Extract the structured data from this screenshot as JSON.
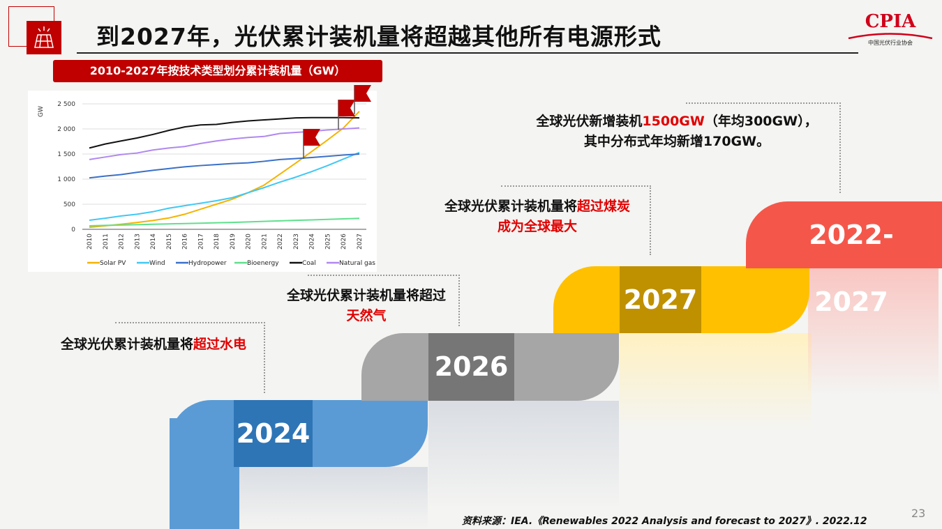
{
  "title": "到2027年，光伏累计装机量将超越其他所有电源形式",
  "logo": {
    "text": "CPIA",
    "subtitle": "中国光伏行业协会"
  },
  "chart_banner": "2010-2027年按技术类型划分累计装机量（GW）",
  "chart_data": {
    "type": "line",
    "ylabel": "GW",
    "ylim": [
      0,
      2500
    ],
    "yticks": [
      "0",
      "500",
      "1 000",
      "1 500",
      "2 000",
      "2 500"
    ],
    "grid": true,
    "legend_position": "bottom",
    "x": [
      "2010",
      "2011",
      "2012",
      "2013",
      "2014",
      "2015",
      "2016",
      "2017",
      "2018",
      "2019",
      "2020",
      "2021",
      "2022",
      "2023",
      "2024",
      "2025",
      "2026",
      "2027"
    ],
    "series": [
      {
        "name": "Solar PV",
        "color": "#f5b300",
        "values": [
          40,
          70,
          100,
          135,
          175,
          225,
          300,
          400,
          500,
          600,
          730,
          880,
          1100,
          1320,
          1550,
          1780,
          2020,
          2350
        ]
      },
      {
        "name": "Wind",
        "color": "#40c8f4",
        "values": [
          180,
          220,
          265,
          300,
          350,
          420,
          470,
          520,
          570,
          630,
          730,
          830,
          940,
          1040,
          1150,
          1270,
          1400,
          1530
        ]
      },
      {
        "name": "Hydropower",
        "color": "#3a70c8",
        "values": [
          1025,
          1060,
          1090,
          1135,
          1175,
          1210,
          1245,
          1270,
          1290,
          1310,
          1325,
          1355,
          1390,
          1410,
          1430,
          1455,
          1480,
          1500
        ]
      },
      {
        "name": "Bioenergy",
        "color": "#5ee08c",
        "values": [
          70,
          78,
          85,
          92,
          100,
          108,
          115,
          122,
          130,
          138,
          148,
          158,
          168,
          178,
          188,
          198,
          208,
          218
        ]
      },
      {
        "name": "Coal",
        "color": "#111111",
        "values": [
          1620,
          1700,
          1760,
          1820,
          1890,
          1970,
          2040,
          2080,
          2090,
          2130,
          2160,
          2180,
          2200,
          2220,
          2225,
          2225,
          2225,
          2220
        ]
      },
      {
        "name": "Natural gas",
        "color": "#b088f0",
        "values": [
          1390,
          1440,
          1490,
          1520,
          1580,
          1620,
          1650,
          1710,
          1760,
          1800,
          1830,
          1850,
          1910,
          1930,
          1950,
          1980,
          2000,
          2020
        ]
      }
    ],
    "flags_at": [
      "2023",
      "2026",
      "2027"
    ]
  },
  "timeline": [
    {
      "year": "2024",
      "color": "#5b9bd5",
      "box": "#2e75b6",
      "note": [
        "全球光伏累计装机量将",
        "超过水电"
      ]
    },
    {
      "year": "2026",
      "color": "#a6a6a6",
      "box": "#767676",
      "note": [
        "全球光伏累计装机量将超过",
        "天然气"
      ]
    },
    {
      "year": "2027",
      "color": "#ffc000",
      "box": "#bf9000",
      "note": [
        "全球光伏累计装机量将",
        "超过煤炭",
        "成为全球最大"
      ]
    },
    {
      "year": "2022-2027",
      "color": "#f4574a",
      "note": [
        "全球光伏新增装机",
        "1500GW",
        "（年均300GW），",
        "其中分布式年均新增170GW。"
      ]
    }
  ],
  "source": "资料来源：IEA.《Renewables 2022 Analysis and forecast to 2027》. 2022.12",
  "page_number": "23"
}
